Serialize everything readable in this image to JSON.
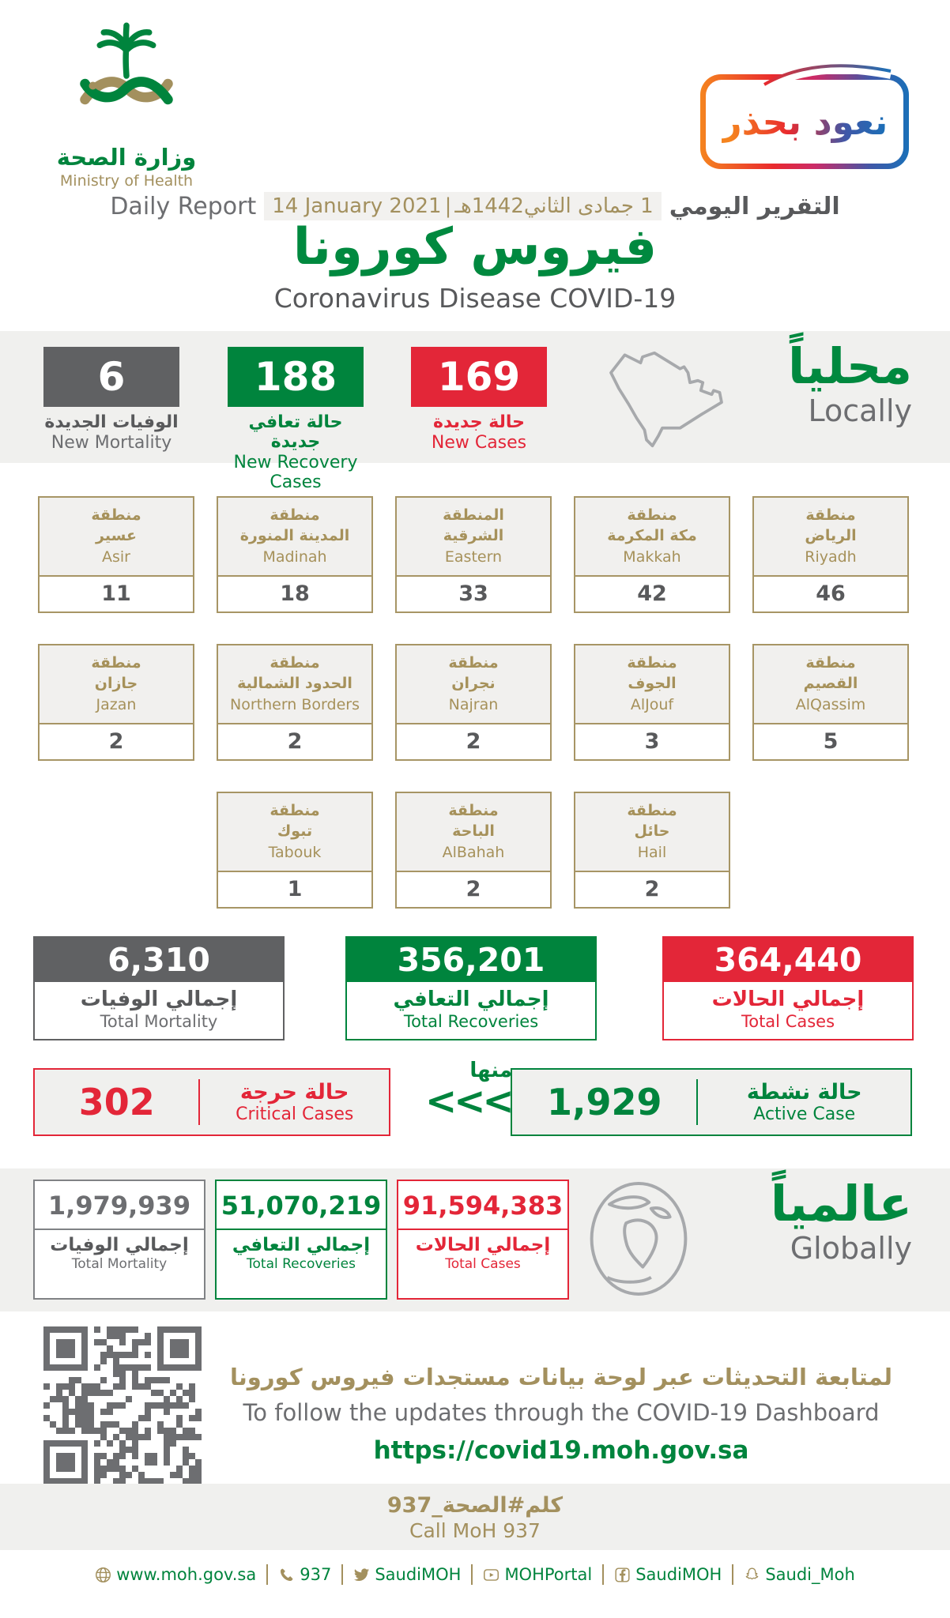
{
  "colors": {
    "green": "#00843d",
    "red": "#e32638",
    "dark_gray": "#58595b",
    "gold": "#a3905e",
    "band_gray": "#f0f0ee"
  },
  "header": {
    "logo_ar": "وزارة الصحة",
    "logo_en": "Ministry of Health",
    "badge_ar": "نعود بحذر",
    "report_label_en": "Daily Report",
    "report_date_en": "14 January 2021",
    "date_separator": "|",
    "report_date_ar": "1 جمادى الثاني1442هـ",
    "report_label_ar": "التقرير اليومي",
    "title_ar": "فيروس كورونا",
    "title_en": "Coronavirus Disease COVID-19"
  },
  "local": {
    "heading_ar": "محلياً",
    "heading_en": "Locally",
    "new_mortality": {
      "value": "6",
      "label_ar": "الوفيات الجديدة",
      "label_en": "New Mortality"
    },
    "new_recoveries": {
      "value": "188",
      "label_ar": "حالة تعافي جديدة",
      "label_en": "New Recovery Cases"
    },
    "new_cases": {
      "value": "169",
      "label_ar": "حالة جديدة",
      "label_en": "New Cases"
    },
    "regions": [
      {
        "ar1": "منطقة",
        "ar2": "عسير",
        "en": "Asir",
        "value": "11"
      },
      {
        "ar1": "منطقة",
        "ar2": "المدينة المنورة",
        "en": "Madinah",
        "value": "18"
      },
      {
        "ar1": "المنطقة",
        "ar2": "الشرقية",
        "en": "Eastern",
        "value": "33"
      },
      {
        "ar1": "منطقة",
        "ar2": "مكة المكرمة",
        "en": "Makkah",
        "value": "42"
      },
      {
        "ar1": "منطقة",
        "ar2": "الرياض",
        "en": "Riyadh",
        "value": "46"
      },
      {
        "ar1": "منطقة",
        "ar2": "جازان",
        "en": "Jazan",
        "value": "2"
      },
      {
        "ar1": "منطقة",
        "ar2": "الحدود الشمالية",
        "en": "Northern Borders",
        "value": "2"
      },
      {
        "ar1": "منطقة",
        "ar2": "نجران",
        "en": "Najran",
        "value": "2"
      },
      {
        "ar1": "منطقة",
        "ar2": "الجوف",
        "en": "AlJouf",
        "value": "3"
      },
      {
        "ar1": "منطقة",
        "ar2": "القصيم",
        "en": "AlQassim",
        "value": "5"
      },
      {
        "ar1": "منطقة",
        "ar2": "تبوك",
        "en": "Tabouk",
        "value": "1"
      },
      {
        "ar1": "منطقة",
        "ar2": "الباحة",
        "en": "AlBahah",
        "value": "2"
      },
      {
        "ar1": "منطقة",
        "ar2": "حائل",
        "en": "Hail",
        "value": "2"
      }
    ],
    "total_mortality": {
      "value": "6,310",
      "label_ar": "إجمالي الوفيات",
      "label_en": "Total Mortality"
    },
    "total_recoveries": {
      "value": "356,201",
      "label_ar": "إجمالي التعافي",
      "label_en": "Total Recoveries"
    },
    "total_cases": {
      "value": "364,440",
      "label_ar": "إجمالي الحالات",
      "label_en": "Total Cases"
    },
    "critical": {
      "value": "302",
      "label_ar": "حالة حرجة",
      "label_en": "Critical Cases"
    },
    "of_which_ar": "منها",
    "arrows": "<<<",
    "active": {
      "value": "1,929",
      "label_ar": "حالة نشطة",
      "label_en": "Active Case"
    }
  },
  "global": {
    "heading_ar": "عالمياً",
    "heading_en": "Globally",
    "total_mortality": {
      "value": "1,979,939",
      "label_ar": "إجمالي الوفيات",
      "label_en": "Total Mortality"
    },
    "total_recoveries": {
      "value": "51,070,219",
      "label_ar": "إجمالي التعافي",
      "label_en": "Total Recoveries"
    },
    "total_cases": {
      "value": "91,594,383",
      "label_ar": "إجمالي الحالات",
      "label_en": "Total Cases"
    }
  },
  "dashboard": {
    "line_ar": "لمتابعة التحديثات عبر لوحة بيانات مستجدات فيروس كورونا",
    "line_en": "To follow the updates through the COVID-19 Dashboard",
    "url": "https://covid19.moh.gov.sa"
  },
  "call": {
    "ar": "كلم#الصحة_937",
    "en": "Call MoH 937"
  },
  "footer": {
    "links": [
      {
        "icon": "globe-icon",
        "text": "www.moh.gov.sa"
      },
      {
        "icon": "phone-icon",
        "text": "937"
      },
      {
        "icon": "twitter-icon",
        "text": "SaudiMOH"
      },
      {
        "icon": "youtube-icon",
        "text": "MOHPortal"
      },
      {
        "icon": "facebook-icon",
        "text": "SaudiMOH"
      },
      {
        "icon": "snapchat-icon",
        "text": "Saudi_Moh"
      }
    ]
  }
}
